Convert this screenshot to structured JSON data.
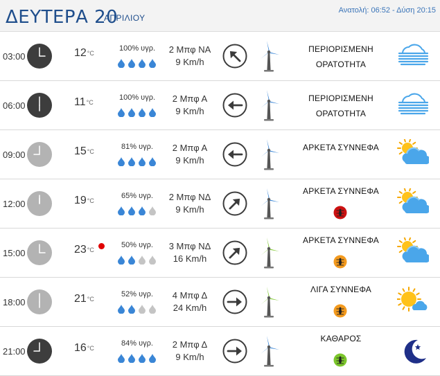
{
  "header": {
    "day": "ΔΕΥΤΕΡΑ 20",
    "month": "ΑΠΡΙΛΙΟΥ",
    "sun": "Ανατολή: 06:52 - Δύση 20:15"
  },
  "temp_unit": "°C",
  "rows": [
    {
      "time": "03:00",
      "clock": "dark",
      "temp": "12",
      "hot": false,
      "humidity": "100% υγρ.",
      "drops": 4,
      "wind_force": "2 Μπφ ΝΑ",
      "wind_speed": "9 Km/h",
      "direction": "north-west",
      "turbine": "blue",
      "desc": [
        "ΠΕΡΙΟΡΙΣΜΕΝΗ",
        "ΟΡΑΤΟΤΗΤΑ"
      ],
      "bug": null,
      "icon": "fog-icon"
    },
    {
      "time": "06:00",
      "clock": "dark",
      "temp": "11",
      "hot": false,
      "humidity": "100% υγρ.",
      "drops": 4,
      "wind_force": "2 Μπφ Α",
      "wind_speed": "9 Km/h",
      "direction": "west",
      "turbine": "blue",
      "desc": [
        "ΠΕΡΙΟΡΙΣΜΕΝΗ",
        "ΟΡΑΤΟΤΗΤΑ"
      ],
      "bug": null,
      "icon": "fog-icon"
    },
    {
      "time": "09:00",
      "clock": "light",
      "temp": "15",
      "hot": false,
      "humidity": "81% υγρ.",
      "drops": 4,
      "wind_force": "2 Μπφ Α",
      "wind_speed": "9 Km/h",
      "direction": "west",
      "turbine": "blue",
      "desc": [
        "ΑΡΚΕΤΑ ΣΥΝΝΕΦΑ"
      ],
      "bug": null,
      "icon": "partly-cloudy-icon"
    },
    {
      "time": "12:00",
      "clock": "light",
      "temp": "19",
      "hot": false,
      "humidity": "65% υγρ.",
      "drops": 3,
      "wind_force": "2 Μπφ ΝΔ",
      "wind_speed": "9 Km/h",
      "direction": "north-east",
      "turbine": "blue",
      "desc": [
        "ΑΡΚΕΤΑ ΣΥΝΝΕΦΑ"
      ],
      "bug": "red",
      "icon": "partly-cloudy-icon"
    },
    {
      "time": "15:00",
      "clock": "light",
      "temp": "23",
      "hot": true,
      "humidity": "50% υγρ.",
      "drops": 2,
      "wind_force": "3 Μπφ ΝΔ",
      "wind_speed": "16 Km/h",
      "direction": "north-east",
      "turbine": "green",
      "desc": [
        "ΑΡΚΕΤΑ ΣΥΝΝΕΦΑ"
      ],
      "bug": "orange",
      "icon": "partly-cloudy-icon"
    },
    {
      "time": "18:00",
      "clock": "light",
      "temp": "21",
      "hot": false,
      "humidity": "52% υγρ.",
      "drops": 2,
      "wind_force": "4 Μπφ Δ",
      "wind_speed": "24 Km/h",
      "direction": "east",
      "turbine": "green",
      "desc": [
        "ΛΙΓΑ ΣΥΝΝΕΦΑ"
      ],
      "bug": "orange",
      "icon": "sun-small-cloud-icon"
    },
    {
      "time": "21:00",
      "clock": "dark",
      "temp": "16",
      "hot": false,
      "humidity": "84% υγρ.",
      "drops": 4,
      "wind_force": "2 Μπφ Δ",
      "wind_speed": "9 Km/h",
      "direction": "east",
      "turbine": "blue",
      "desc": [
        "ΚΑΘΑΡΟΣ"
      ],
      "bug": "green",
      "icon": "moon-icon"
    }
  ],
  "colors": {
    "header_blue": "#1f4e8c",
    "drop_blue": "#3a86d6",
    "drop_gray": "#c4c4c4",
    "hot_red": "#e00000",
    "bug_red": "#cc1111",
    "bug_orange": "#f39a1e",
    "bug_green": "#7cc62c",
    "turbine_blue": "#3a86d6",
    "turbine_green": "#7cc62c"
  }
}
